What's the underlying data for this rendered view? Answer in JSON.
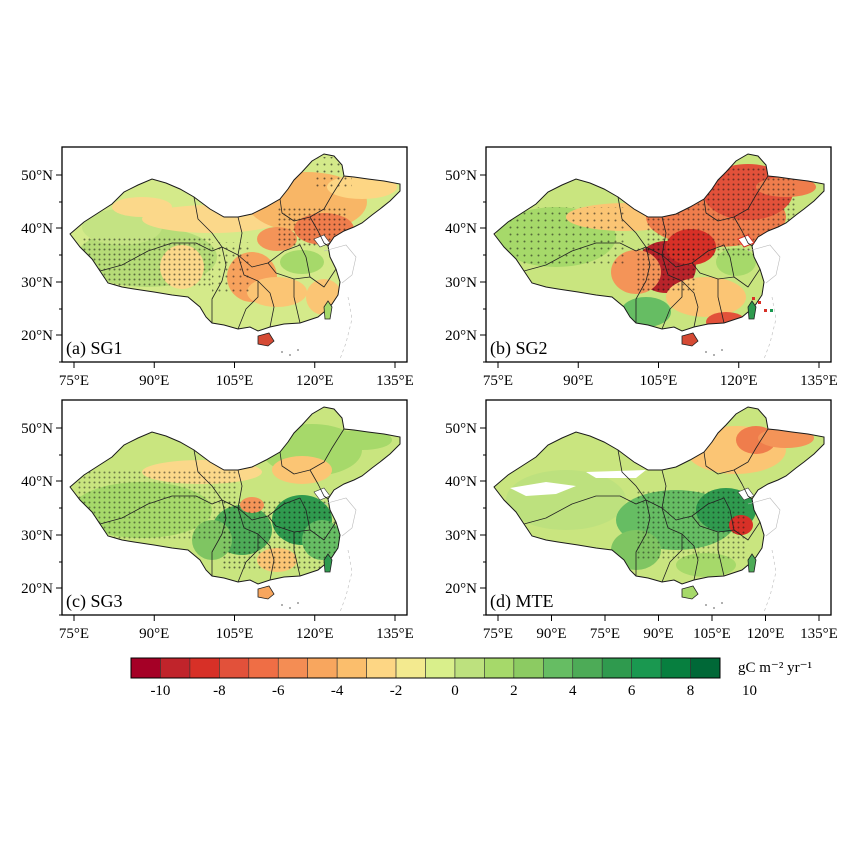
{
  "panels": [
    {
      "id": "a",
      "label": "(a) SG1"
    },
    {
      "id": "b",
      "label": "(b) SG2"
    },
    {
      "id": "c",
      "label": "(c) SG3"
    },
    {
      "id": "d",
      "label": "(d) MTE"
    }
  ],
  "axes": {
    "lat_labels": [
      "50°N",
      "40°N",
      "30°N",
      "20°N"
    ],
    "lon_labels": [
      "75°E",
      "90°E",
      "105°E",
      "120°E",
      "135°E"
    ],
    "lon_labels_panel_d": [
      "75°E",
      "90°E",
      "75°E",
      "90°E",
      "105°E",
      "120°E",
      "135°E"
    ]
  },
  "colorbar": {
    "tick_labels": [
      "-10",
      "-8",
      "-6",
      "-4",
      "-2",
      "0",
      "2",
      "4",
      "6",
      "8",
      "10"
    ],
    "unit": "gC m⁻² yr⁻¹",
    "colors": [
      "#a50026",
      "#c0242b",
      "#d73027",
      "#e2513a",
      "#ef6e45",
      "#f48d54",
      "#f8a65e",
      "#fbbe6c",
      "#fdd684",
      "#f3ea8f",
      "#d9ef8b",
      "#bde17e",
      "#a6d96a",
      "#8ccb62",
      "#66bd63",
      "#4dab57",
      "#2f9a4e",
      "#1a9850",
      "#077f3f",
      "#006837"
    ]
  },
  "significance": {
    "stippling": "dots mark significant trends"
  }
}
